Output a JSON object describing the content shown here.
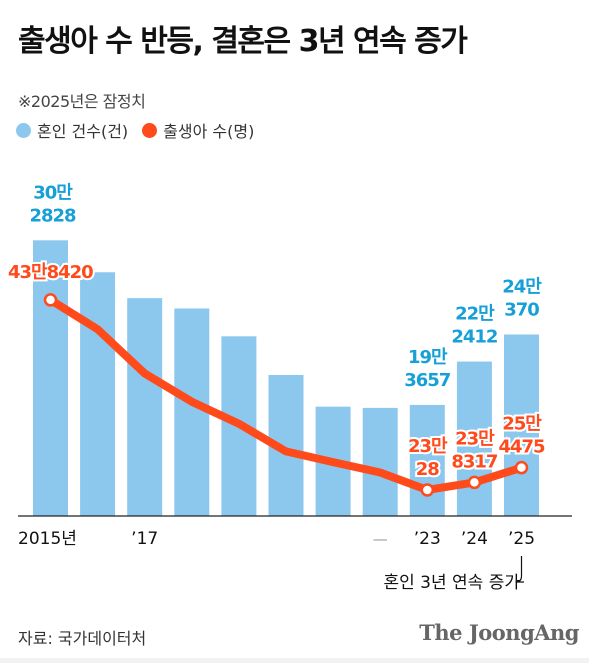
{
  "header": {
    "title": "출생아 수 반등, 결혼은 3년 연속 증가",
    "note": "※2025년은 잠정치"
  },
  "colors": {
    "bar": "#8cc8ee",
    "line": "#ff4a1c",
    "bar_label": "#17a0d8",
    "line_label": "#ff4a1c"
  },
  "chart_data": {
    "type": "bar",
    "title": "출생아 수 반등, 결혼은 3년 연속 증가",
    "categories": [
      "2015년",
      "",
      "’17",
      "",
      "",
      "",
      "",
      "",
      "’23",
      "’24",
      "’25"
    ],
    "series": [
      {
        "name": "혼인 건수(건)",
        "type": "bar",
        "values": [
          302828,
          281635,
          264455,
          257622,
          239159,
          213502,
          192507,
          191690,
          193657,
          222412,
          240370
        ]
      },
      {
        "name": "출생아 수(명)",
        "type": "line",
        "values": [
          438420,
          406243,
          357771,
          326822,
          302676,
          272337,
          260562,
          249186,
          230028,
          238317,
          254475
        ]
      }
    ],
    "bar_labels": [
      {
        "index": 0,
        "lines": [
          "30만",
          "2828"
        ]
      },
      {
        "index": 8,
        "lines": [
          "19만",
          "3657"
        ]
      },
      {
        "index": 9,
        "lines": [
          "22만",
          "2412"
        ]
      },
      {
        "index": 10,
        "lines": [
          "24만",
          "370"
        ]
      }
    ],
    "line_labels": [
      {
        "index": 0,
        "lines": [
          "43만8420"
        ]
      },
      {
        "index": 8,
        "lines": [
          "23만",
          "28"
        ]
      },
      {
        "index": 9,
        "lines": [
          "23만",
          "8317"
        ]
      },
      {
        "index": 10,
        "lines": [
          "25만",
          "4475"
        ]
      }
    ],
    "annotation": "혼인 3년 연속 증가",
    "extra_tick": "—",
    "grid": false,
    "legend_position": "top-left"
  },
  "footer": {
    "source": "자료: 국가데이터처",
    "logo": "The JoongAng"
  }
}
